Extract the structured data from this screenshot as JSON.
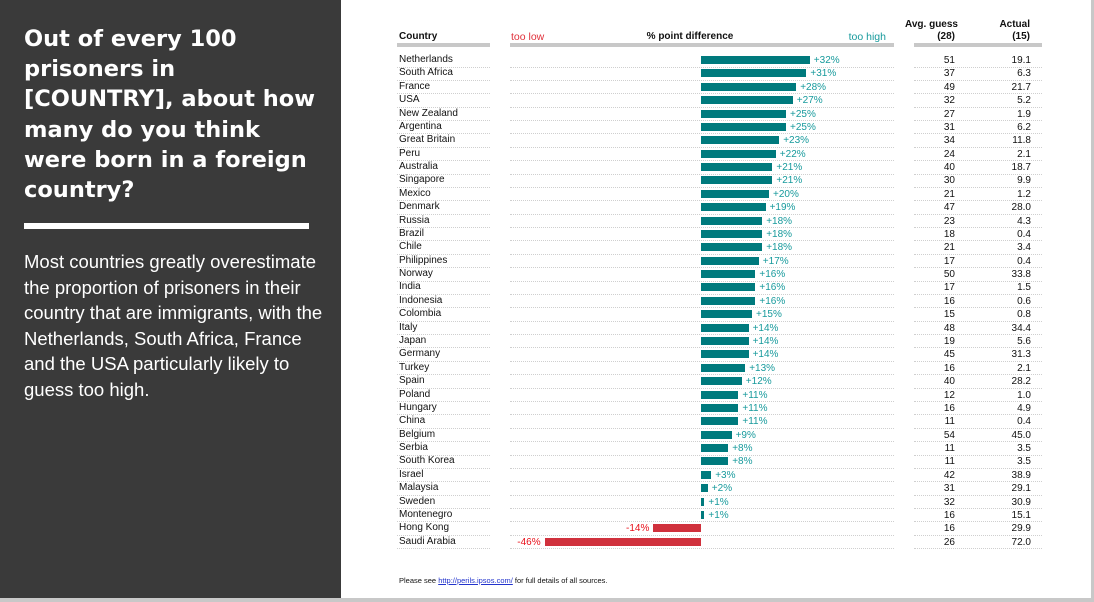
{
  "sidebar": {
    "title": "Out of every 100 prisoners in [COUNTRY], about how many do you think were born in a foreign country?",
    "body": "Most countries greatly overestimate the proportion of prisoners in their country that are immigrants, with the Netherlands, South Africa, France and the USA particularly likely to guess too high."
  },
  "footer": {
    "prefix": "Please see",
    "link": "http://perils.ipsos.com/",
    "suffix": "for full details of all sources."
  },
  "colors": {
    "positive": "#007a7d",
    "negative": "#d0313d",
    "positive_label": "#179a9c",
    "negative_label": "#e8101a",
    "panel": "#3a3a3a"
  },
  "chart_data": {
    "type": "bar",
    "orientation": "horizontal",
    "headers": {
      "country": "Country",
      "too_low": "too low",
      "diff": "% point difference",
      "too_high": "too high",
      "avg_guess": "Avg. guess",
      "avg_guess_n": "(28)",
      "actual": "Actual",
      "actual_n": "(15)"
    },
    "categories": [
      "Netherlands",
      "South Africa",
      "France",
      "USA",
      "New Zealand",
      "Argentina",
      "Great Britain",
      "Peru",
      "Australia",
      "Singapore",
      "Mexico",
      "Denmark",
      "Russia",
      "Brazil",
      "Chile",
      "Philippines",
      "Norway",
      "India",
      "Indonesia",
      "Colombia",
      "Italy",
      "Japan",
      "Germany",
      "Turkey",
      "Spain",
      "Poland",
      "Hungary",
      "China",
      "Belgium",
      "Serbia",
      "South Korea",
      "Israel",
      "Malaysia",
      "Sweden",
      "Montenegro",
      "Hong Kong",
      "Saudi Arabia"
    ],
    "difference": [
      32,
      31,
      28,
      27,
      25,
      25,
      23,
      22,
      21,
      21,
      20,
      19,
      18,
      18,
      18,
      17,
      16,
      16,
      16,
      15,
      14,
      14,
      14,
      13,
      12,
      11,
      11,
      11,
      9,
      8,
      8,
      3,
      2,
      1,
      1,
      -14,
      -46
    ],
    "difference_labels": [
      "+32%",
      "+31%",
      "+28%",
      "+27%",
      "+25%",
      "+25%",
      "+23%",
      "+22%",
      "+21%",
      "+21%",
      "+20%",
      "+19%",
      "+18%",
      "+18%",
      "+18%",
      "+17%",
      "+16%",
      "+16%",
      "+16%",
      "+15%",
      "+14%",
      "+14%",
      "+14%",
      "+13%",
      "+12%",
      "+11%",
      "+11%",
      "+11%",
      "+9%",
      "+8%",
      "+8%",
      "+3%",
      "+2%",
      "+1%",
      "+1%",
      "-14%",
      "-46%"
    ],
    "avg_guess": [
      "51",
      "37",
      "49",
      "32",
      "27",
      "31",
      "34",
      "24",
      "40",
      "30",
      "21",
      "47",
      "23",
      "18",
      "21",
      "17",
      "50",
      "17",
      "16",
      "15",
      "48",
      "19",
      "45",
      "16",
      "40",
      "12",
      "16",
      "11",
      "54",
      "11",
      "11",
      "42",
      "31",
      "32",
      "16",
      "16",
      "26"
    ],
    "actual": [
      "19.1",
      "6.3",
      "21.7",
      "5.2",
      "1.9",
      "6.2",
      "11.8",
      "2.1",
      "18.7",
      "9.9",
      "1.2",
      "28.0",
      "4.3",
      "0.4",
      "3.4",
      "0.4",
      "33.8",
      "1.5",
      "0.6",
      "0.8",
      "34.4",
      "5.6",
      "31.3",
      "2.1",
      "28.2",
      "1.0",
      "4.9",
      "0.4",
      "45.0",
      "3.5",
      "3.5",
      "38.9",
      "29.1",
      "30.9",
      "15.1",
      "29.9",
      "72.0"
    ]
  }
}
